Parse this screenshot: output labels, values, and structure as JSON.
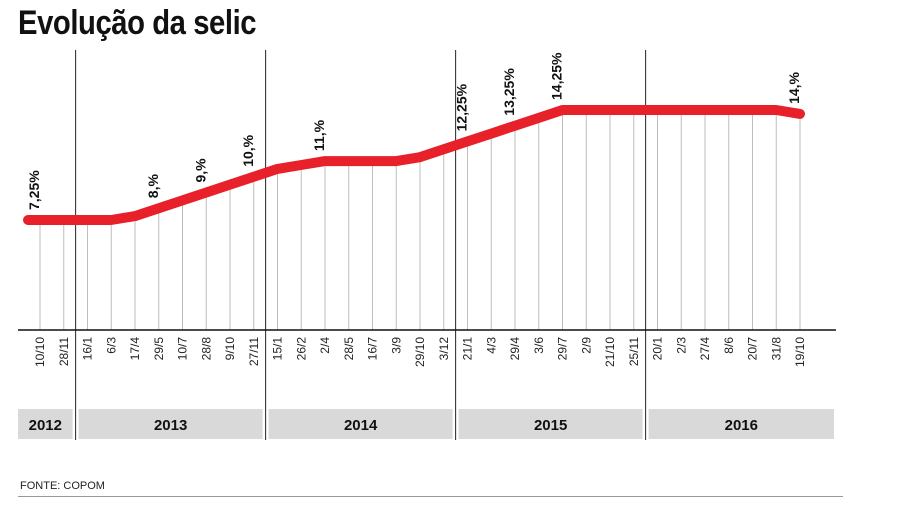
{
  "title": "Evolução da selic",
  "source": "FONTE: COPOM",
  "chart_data": {
    "type": "line",
    "title": "Evolução da selic",
    "xlabel": "",
    "ylabel": "",
    "ylim": [
      0,
      16
    ],
    "grid": true,
    "line_color": "#e8202a",
    "dates": [
      "10/10",
      "28/11",
      "16/1",
      "6/3",
      "17/4",
      "29/5",
      "10/7",
      "28/8",
      "9/10",
      "27/11",
      "15/1",
      "26/2",
      "2/4",
      "28/5",
      "16/7",
      "3/9",
      "29/10",
      "3/12",
      "21/1",
      "4/3",
      "29/4",
      "3/6",
      "29/7",
      "2/9",
      "21/10",
      "25/11",
      "20/1",
      "2/3",
      "27/4",
      "8/6",
      "20/7",
      "31/8",
      "19/10"
    ],
    "values": [
      7.25,
      7.25,
      7.25,
      7.25,
      7.5,
      8,
      8.5,
      9,
      9.5,
      10,
      10.5,
      10.75,
      11,
      11,
      11,
      11,
      11.25,
      11.75,
      12.25,
      12.75,
      13.25,
      13.75,
      14.25,
      14.25,
      14.25,
      14.25,
      14.25,
      14.25,
      14.25,
      14.25,
      14.25,
      14.25,
      14
    ],
    "annotations": [
      {
        "index": 0,
        "label": "7,25%"
      },
      {
        "index": 5,
        "label": "8,%"
      },
      {
        "index": 7,
        "label": "9,%"
      },
      {
        "index": 9,
        "label": "10,%"
      },
      {
        "index": 12,
        "label": "11,%"
      },
      {
        "index": 18,
        "label": "12,25%"
      },
      {
        "index": 20,
        "label": "13,25%"
      },
      {
        "index": 22,
        "label": "14,25%"
      },
      {
        "index": 32,
        "label": "14,%"
      }
    ],
    "years": [
      {
        "label": "2012",
        "start": 0,
        "end": 1
      },
      {
        "label": "2013",
        "start": 2,
        "end": 9
      },
      {
        "label": "2014",
        "start": 10,
        "end": 17
      },
      {
        "label": "2015",
        "start": 18,
        "end": 25
      },
      {
        "label": "2016",
        "start": 26,
        "end": 32
      }
    ]
  }
}
